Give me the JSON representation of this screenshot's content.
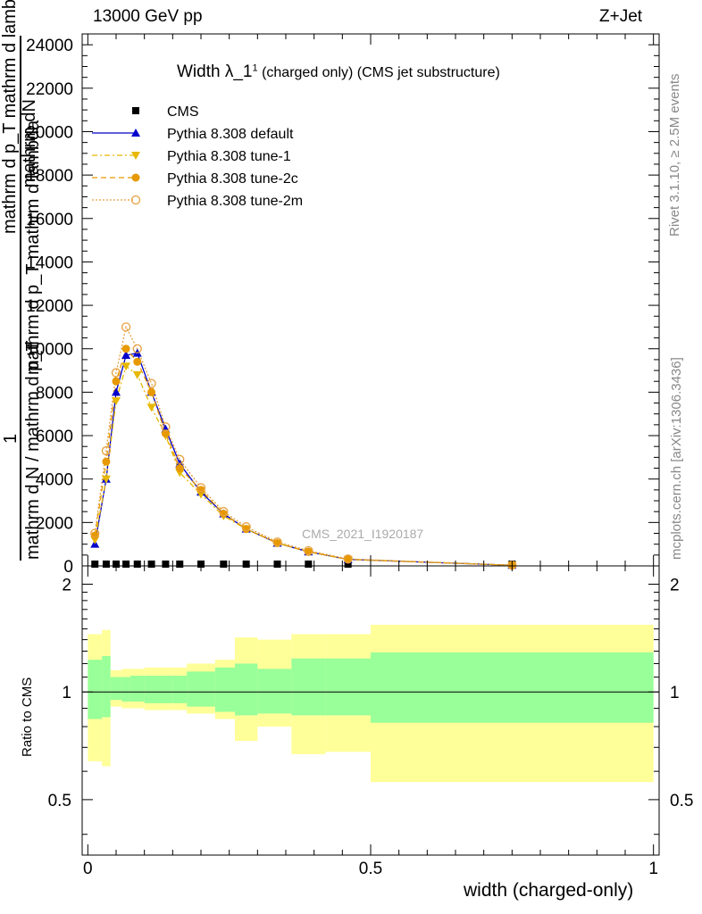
{
  "header": {
    "left": "13000 GeV pp",
    "right": "Z+Jet"
  },
  "plot_title": {
    "main": "Width λ_1",
    "superscript": "1",
    "sub": "(charged only) (CMS jet substructure)"
  },
  "side_labels": {
    "rivet": "Rivet 3.1.10, ≥ 2.5M events",
    "mcplots": "mcplots.cern.ch [arXiv:1306.3436]"
  },
  "watermark": "CMS_2021_I1920187",
  "main_ylabel": {
    "top_numerator": "mathrm dN",
    "top_denominator": "mathrm d p_T mathrm d lambda",
    "top2_denominator": "mathrm d p_T mathrm d lambda",
    "frac_numerator": "1",
    "frac_denominator": "mathrm d N / mathrm d p_T"
  },
  "ratio_ylabel": "Ratio to CMS",
  "xlabel": "width (charged-only)",
  "colors": {
    "cms": "#000000",
    "default": "#0000cc",
    "tune1": "#e6b800",
    "tune2c": "#e69900",
    "tune2m": "#e6a040",
    "band_outer": "#ffff99",
    "band_inner": "#99ff99"
  },
  "chart_data": {
    "type": "line",
    "x_range": [
      -0.01,
      1.01
    ],
    "main_yrange": [
      0,
      24500
    ],
    "main_yticks": [
      0,
      2000,
      4000,
      6000,
      8000,
      10000,
      12000,
      14000,
      16000,
      18000,
      20000,
      22000,
      24000
    ],
    "ratio_yrange": [
      0.35,
      2.25
    ],
    "ratio_yticks": [
      "0.5",
      "1",
      "2"
    ],
    "xticks": [
      "0",
      "0.5",
      "1"
    ],
    "x": [
      0.0125,
      0.0325,
      0.05,
      0.0675,
      0.0875,
      0.1125,
      0.1375,
      0.1625,
      0.2,
      0.24,
      0.28,
      0.335,
      0.39,
      0.46,
      0.75
    ],
    "bin_edges": [
      0.0,
      0.025,
      0.04,
      0.06,
      0.075,
      0.1,
      0.125,
      0.15,
      0.175,
      0.225,
      0.26,
      0.3,
      0.36,
      0.42,
      0.5,
      1.0
    ],
    "series": [
      {
        "name": "CMS",
        "values": [
          0,
          0,
          0,
          0,
          0,
          0,
          0,
          0,
          0,
          0,
          0,
          0,
          0,
          0,
          0
        ]
      },
      {
        "name": "Pythia 8.308 default",
        "values": [
          1000,
          4000,
          8000,
          9700,
          9800,
          8000,
          6300,
          4700,
          3400,
          2400,
          1700,
          1050,
          650,
          300,
          30
        ]
      },
      {
        "name": "Pythia 8.308 tune-1",
        "values": [
          1200,
          4000,
          7600,
          9200,
          8800,
          7300,
          6000,
          4300,
          3300,
          2300,
          1700,
          1050,
          650,
          300,
          30
        ]
      },
      {
        "name": "Pythia 8.308 tune-2c",
        "values": [
          1400,
          4800,
          8500,
          10000,
          9400,
          8000,
          6100,
          4500,
          3500,
          2400,
          1700,
          1050,
          650,
          300,
          30
        ]
      },
      {
        "name": "Pythia 8.308 tune-2m",
        "values": [
          1500,
          5300,
          8900,
          11000,
          10000,
          8400,
          6400,
          4900,
          3600,
          2500,
          1800,
          1100,
          700,
          320,
          30
        ]
      }
    ],
    "ratio_bands": {
      "outer": [
        [
          0.64,
          1.45
        ],
        [
          0.62,
          1.49
        ],
        [
          0.91,
          1.15
        ],
        [
          0.9,
          1.16
        ],
        [
          0.9,
          1.16
        ],
        [
          0.89,
          1.17
        ],
        [
          0.89,
          1.17
        ],
        [
          0.89,
          1.17
        ],
        [
          0.87,
          1.2
        ],
        [
          0.84,
          1.23
        ],
        [
          0.73,
          1.42
        ],
        [
          0.8,
          1.4
        ],
        [
          0.67,
          1.45
        ],
        [
          0.68,
          1.45
        ],
        [
          0.56,
          1.54
        ]
      ],
      "inner": [
        [
          0.84,
          1.23
        ],
        [
          0.85,
          1.26
        ],
        [
          0.95,
          1.1
        ],
        [
          0.94,
          1.1
        ],
        [
          0.94,
          1.11
        ],
        [
          0.93,
          1.11
        ],
        [
          0.93,
          1.11
        ],
        [
          0.93,
          1.11
        ],
        [
          0.91,
          1.14
        ],
        [
          0.88,
          1.17
        ],
        [
          0.86,
          1.2
        ],
        [
          0.87,
          1.16
        ],
        [
          0.86,
          1.24
        ],
        [
          0.86,
          1.24
        ],
        [
          0.82,
          1.29
        ]
      ]
    }
  }
}
